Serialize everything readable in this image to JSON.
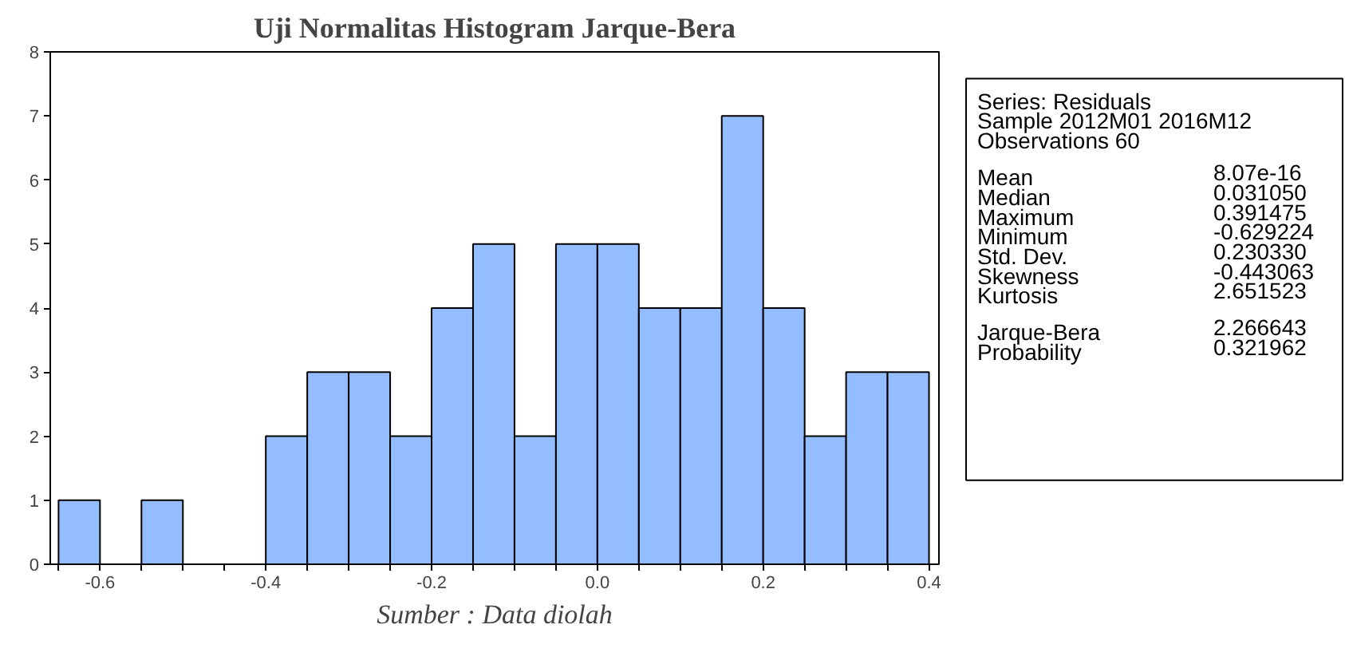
{
  "chart_data": {
    "type": "histogram",
    "title": "Uji Normalitas Histogram Jarque-Bera",
    "bins": [
      -0.65,
      -0.6,
      -0.55,
      -0.5,
      -0.45,
      -0.4,
      -0.35,
      -0.3,
      -0.25,
      -0.2,
      -0.15,
      -0.1,
      -0.05,
      0.0,
      0.05,
      0.1,
      0.15,
      0.2,
      0.25,
      0.3,
      0.35,
      0.4
    ],
    "values": [
      1,
      0,
      1,
      0,
      0,
      2,
      3,
      3,
      2,
      4,
      5,
      2,
      5,
      5,
      4,
      4,
      7,
      4,
      2,
      3,
      3
    ],
    "color": "#94bdff",
    "xlim": [
      -0.66,
      0.412
    ],
    "ylim": [
      0,
      8
    ],
    "xticks": [
      {
        "value": -0.65,
        "label": null
      },
      -0.6,
      {
        "value": -0.55,
        "label": null
      },
      {
        "value": -0.5,
        "label": null
      },
      {
        "value": -0.45,
        "label": null
      },
      -0.4,
      {
        "value": -0.35,
        "label": null
      },
      {
        "value": -0.3,
        "label": null
      },
      {
        "value": -0.25,
        "label": null
      },
      -0.2,
      {
        "value": -0.15,
        "label": null
      },
      {
        "value": -0.1,
        "label": null
      },
      {
        "value": -0.05,
        "label": null
      },
      {
        "value": 0.0,
        "label": "0.0"
      },
      {
        "value": 0.05,
        "label": null
      },
      {
        "value": 0.1,
        "label": null
      },
      {
        "value": 0.15,
        "label": null
      },
      0.2,
      {
        "value": 0.25,
        "label": null
      },
      {
        "value": 0.3,
        "label": null
      },
      {
        "value": 0.35,
        "label": null
      },
      0.4
    ],
    "yticks": [
      0,
      1,
      2,
      3,
      4,
      5,
      6,
      7,
      8
    ],
    "grid": false,
    "annotations": [
      "Series: Residuals",
      "Sample 2012M01 2016M12",
      "Observations 60",
      "Mean\t8.07e-16",
      "Median\t0.031050",
      "Maximum\t0.391475",
      "Minimum\t-0.629224",
      "Std. Dev.\t0.230330",
      "Skewness\t-0.443063",
      "Kurtosis\t2.651523",
      "Jarque-Bera\t2.266643",
      "Probability\t0.321962",
      "Sumber : Data diolah"
    ]
  }
}
